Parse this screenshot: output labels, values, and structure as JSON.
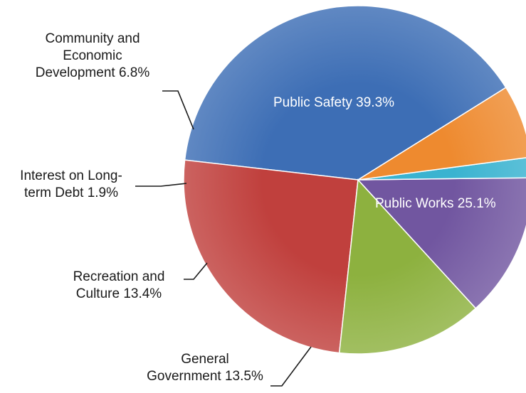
{
  "chart_data": {
    "type": "pie",
    "title": "",
    "slices": [
      {
        "label": "Public Safety",
        "value": 39.3,
        "text": "Public Safety 39.3%",
        "color": "#3d6eb5"
      },
      {
        "label": "Public Works",
        "value": 25.1,
        "text": "Public Works 25.1%",
        "color": "#c0403d"
      },
      {
        "label": "General Government",
        "value": 13.5,
        "text_lines": [
          "General",
          "Government 13.5%"
        ],
        "color": "#8db13f"
      },
      {
        "label": "Recreation and Culture",
        "value": 13.4,
        "text_lines": [
          "Recreation and",
          "Culture 13.4%"
        ],
        "color": "#7156a0"
      },
      {
        "label": "Interest on Long-term Debt",
        "value": 1.9,
        "text_lines": [
          "Interest on Long-",
          "term Debt 1.9%"
        ],
        "color": "#3ab3d0"
      },
      {
        "label": "Community and Economic Development",
        "value": 6.8,
        "text_lines": [
          "Community and",
          "Economic",
          "Development 6.8%"
        ],
        "color": "#ee8a2f"
      }
    ],
    "legend": "none"
  }
}
